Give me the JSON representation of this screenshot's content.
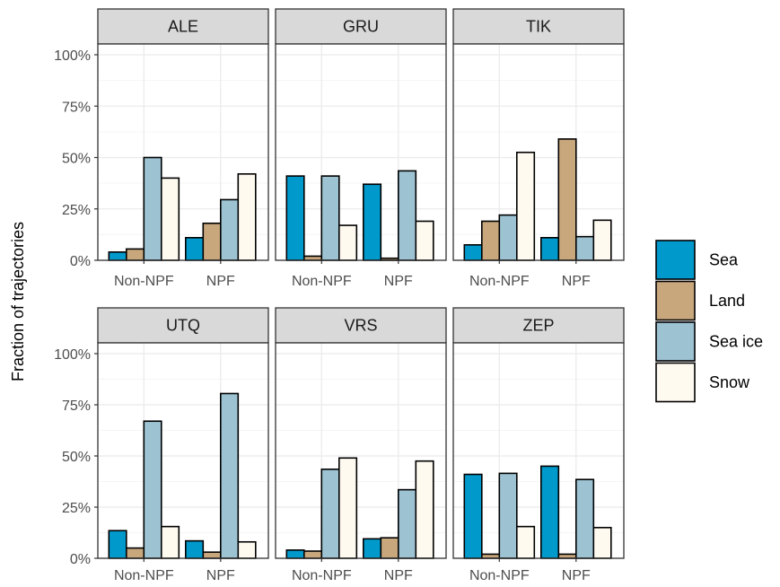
{
  "colors": {
    "Sea": "#0099cc",
    "Land": "#c8a77d",
    "Sea ice": "#9dc3d3",
    "Snow": "#fefaf0",
    "strip_bg": "#d9d9d9",
    "grid_major": "#ebebeb",
    "grid_minor": "#f5f5f5",
    "panel_border": "#333333"
  },
  "chart_data": {
    "type": "bar",
    "layout": "facet-grid 2x3",
    "ylabel": "Fraction of trajectories",
    "ylim": [
      0,
      100
    ],
    "yticks": [
      "0%",
      "25%",
      "50%",
      "75%",
      "100%"
    ],
    "categories": [
      "Non-NPF",
      "NPF"
    ],
    "legend": {
      "position": "right",
      "entries": [
        "Sea",
        "Land",
        "Sea ice",
        "Snow"
      ]
    },
    "panels": [
      {
        "name": "ALE",
        "series": [
          {
            "name": "Sea",
            "values": [
              4,
              11
            ]
          },
          {
            "name": "Land",
            "values": [
              5.5,
              18
            ]
          },
          {
            "name": "Sea ice",
            "values": [
              50,
              29.5
            ]
          },
          {
            "name": "Snow",
            "values": [
              40,
              42
            ]
          }
        ]
      },
      {
        "name": "GRU",
        "series": [
          {
            "name": "Sea",
            "values": [
              41,
              37
            ]
          },
          {
            "name": "Land",
            "values": [
              2,
              1
            ]
          },
          {
            "name": "Sea ice",
            "values": [
              41,
              43.5
            ]
          },
          {
            "name": "Snow",
            "values": [
              17,
              19
            ]
          }
        ]
      },
      {
        "name": "TIK",
        "series": [
          {
            "name": "Sea",
            "values": [
              7.5,
              11
            ]
          },
          {
            "name": "Land",
            "values": [
              19,
              59
            ]
          },
          {
            "name": "Sea ice",
            "values": [
              22,
              11.5
            ]
          },
          {
            "name": "Snow",
            "values": [
              52.5,
              19.5
            ]
          }
        ]
      },
      {
        "name": "UTQ",
        "series": [
          {
            "name": "Sea",
            "values": [
              13.5,
              8.5
            ]
          },
          {
            "name": "Land",
            "values": [
              5,
              3
            ]
          },
          {
            "name": "Sea ice",
            "values": [
              67,
              80.5
            ]
          },
          {
            "name": "Snow",
            "values": [
              15.5,
              8
            ]
          }
        ]
      },
      {
        "name": "VRS",
        "series": [
          {
            "name": "Sea",
            "values": [
              4,
              9.5
            ]
          },
          {
            "name": "Land",
            "values": [
              3.5,
              10
            ]
          },
          {
            "name": "Sea ice",
            "values": [
              43.5,
              33.5
            ]
          },
          {
            "name": "Snow",
            "values": [
              49,
              47.5
            ]
          }
        ]
      },
      {
        "name": "ZEP",
        "series": [
          {
            "name": "Sea",
            "values": [
              41,
              45
            ]
          },
          {
            "name": "Land",
            "values": [
              2,
              2
            ]
          },
          {
            "name": "Sea ice",
            "values": [
              41.5,
              38.5
            ]
          },
          {
            "name": "Snow",
            "values": [
              15.5,
              15
            ]
          }
        ]
      }
    ]
  }
}
